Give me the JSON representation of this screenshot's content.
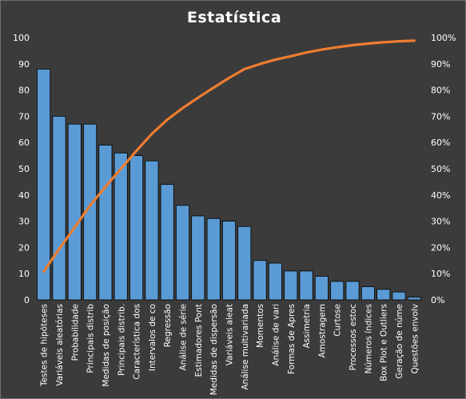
{
  "chart_data": {
    "type": "bar",
    "title": "Estatística",
    "categories": [
      "Testes de hipóteses",
      "Variáveis aleatórias",
      "Probabilidade",
      "Principais distrib",
      "Medidas de posição",
      "Principais distrib.",
      "Característica dos",
      "Intervalos de co",
      "Regressão",
      "Análise de série",
      "Estimadores Pont",
      "Medidas de dispersão",
      "Variáveis aleat",
      "Análise multivariada",
      "Momentos",
      "Análise de vari",
      "Formas de Apres",
      "Assimetria",
      "Amostragem",
      "Curtose",
      "Processos estoc",
      "Números índices",
      "Box Plot e Outliers",
      "Geração de núme",
      "Questões envolv"
    ],
    "series": [
      {
        "values": [
          88,
          70,
          67,
          67,
          59,
          56,
          55,
          53,
          44,
          36,
          32,
          31,
          30,
          28,
          15,
          14,
          11,
          11,
          9,
          7,
          7,
          5,
          4,
          3,
          1
        ],
        "color": "#5b9bd5",
        "axis": "left"
      },
      {
        "type": "line",
        "values": [
          10.8,
          19.4,
          27.6,
          35.9,
          43.1,
          50.0,
          56.8,
          63.3,
          68.7,
          73.1,
          77.1,
          80.9,
          84.6,
          88.0,
          89.9,
          91.6,
          92.9,
          94.3,
          95.4,
          96.3,
          97.1,
          97.7,
          98.2,
          98.6,
          98.8
        ],
        "color": "#ed7d31",
        "axis": "right",
        "unit": "%"
      }
    ],
    "ylim": [
      0,
      100
    ],
    "yticks": [
      0,
      10,
      20,
      30,
      40,
      50,
      60,
      70,
      80,
      90,
      100
    ],
    "y2lim": [
      0,
      100
    ],
    "y2ticks": [
      "0%",
      "10%",
      "20%",
      "30%",
      "40%",
      "50%",
      "60%",
      "70%",
      "80%",
      "90%",
      "100%"
    ],
    "grid": false,
    "legend": "none",
    "background": "#3b3b3b",
    "text_color": "#ffffff"
  }
}
